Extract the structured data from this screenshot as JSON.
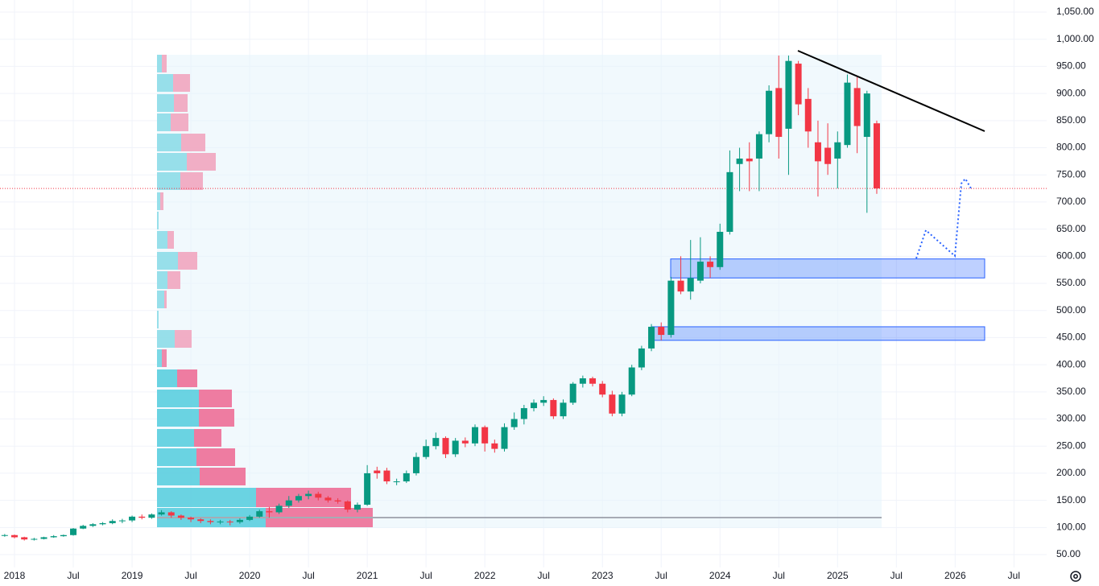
{
  "chart_data": {
    "type": "candlestick",
    "up_color": "#089981",
    "down_color": "#f23645",
    "grid": true,
    "xlim": [
      -1.48,
      105.34
    ],
    "xticks": [
      {
        "value": 0,
        "label": "2018"
      },
      {
        "value": 6,
        "label": "Jul"
      },
      {
        "value": 12,
        "label": "2019"
      },
      {
        "value": 18,
        "label": "Jul"
      },
      {
        "value": 24,
        "label": "2020"
      },
      {
        "value": 30,
        "label": "Jul"
      },
      {
        "value": 36,
        "label": "2021"
      },
      {
        "value": 42,
        "label": "Jul"
      },
      {
        "value": 48,
        "label": "2022"
      },
      {
        "value": 54,
        "label": "Jul"
      },
      {
        "value": 60,
        "label": "2023"
      },
      {
        "value": 66,
        "label": "Jul"
      },
      {
        "value": 72,
        "label": "2024"
      },
      {
        "value": 78,
        "label": "Jul"
      },
      {
        "value": 84,
        "label": "2025"
      },
      {
        "value": 90,
        "label": "Jul"
      },
      {
        "value": 96,
        "label": "2026"
      },
      {
        "value": 102,
        "label": "Jul"
      }
    ],
    "ylim": [
      26.3,
      1072.3
    ],
    "yticks": [
      {
        "value": 50,
        "label": "50.00"
      },
      {
        "value": 100,
        "label": "100.00"
      },
      {
        "value": 150,
        "label": "150.00"
      },
      {
        "value": 200,
        "label": "200.00"
      },
      {
        "value": 250,
        "label": "250.00"
      },
      {
        "value": 300,
        "label": "300.00"
      },
      {
        "value": 350,
        "label": "350.00"
      },
      {
        "value": 400,
        "label": "400.00"
      },
      {
        "value": 450,
        "label": "450.00"
      },
      {
        "value": 500,
        "label": "500.00"
      },
      {
        "value": 550,
        "label": "550.00"
      },
      {
        "value": 600,
        "label": "600.00"
      },
      {
        "value": 650,
        "label": "650.00"
      },
      {
        "value": 700,
        "label": "700.00"
      },
      {
        "value": 750,
        "label": "750.00"
      },
      {
        "value": 800,
        "label": "800.00"
      },
      {
        "value": 850,
        "label": "850.00"
      },
      {
        "value": 900,
        "label": "900.00"
      },
      {
        "value": 950,
        "label": "950.00"
      },
      {
        "value": 1000,
        "label": "1,000.00"
      },
      {
        "value": 1050,
        "label": "1,050.00"
      }
    ],
    "x": [
      -1,
      0,
      1,
      2,
      3,
      4,
      5,
      6,
      7,
      8,
      9,
      10,
      11,
      12,
      13,
      14,
      15,
      16,
      17,
      18,
      19,
      20,
      21,
      22,
      23,
      24,
      25,
      26,
      27,
      28,
      29,
      30,
      31,
      32,
      33,
      34,
      35,
      36,
      37,
      38,
      39,
      40,
      41,
      42,
      43,
      44,
      45,
      46,
      47,
      48,
      49,
      50,
      51,
      52,
      53,
      54,
      55,
      56,
      57,
      58,
      59,
      60,
      61,
      62,
      63,
      64,
      65,
      66,
      67,
      68,
      69,
      70,
      71,
      72,
      73,
      74,
      75,
      76,
      77,
      78,
      79,
      80,
      81,
      82,
      83,
      84,
      85,
      86,
      87,
      88
    ],
    "open": [
      85,
      86,
      82,
      78,
      79,
      82,
      84,
      86,
      98,
      103,
      106,
      108,
      112,
      113,
      120,
      118,
      124,
      128,
      122,
      118,
      115,
      112,
      110,
      111,
      110,
      114,
      120,
      130,
      128,
      140,
      150,
      158,
      162,
      155,
      150,
      148,
      133,
      142,
      205,
      205,
      185,
      185,
      200,
      230,
      250,
      265,
      235,
      260,
      255,
      285,
      255,
      245,
      285,
      300,
      320,
      330,
      335,
      305,
      330,
      365,
      375,
      365,
      345,
      310,
      345,
      395,
      430,
      470,
      455,
      555,
      535,
      555,
      590,
      580,
      645,
      770,
      780,
      780,
      825,
      910,
      835,
      955,
      890,
      810,
      800,
      780,
      805,
      910,
      820,
      845
    ],
    "high": [
      88,
      87,
      83,
      81,
      83,
      86,
      87,
      99,
      105,
      108,
      110,
      115,
      116,
      122,
      124,
      126,
      132,
      130,
      124,
      120,
      117,
      115,
      114,
      114,
      117,
      123,
      133,
      138,
      144,
      158,
      162,
      168,
      166,
      158,
      154,
      150,
      146,
      215,
      212,
      210,
      190,
      205,
      238,
      262,
      275,
      268,
      265,
      266,
      290,
      288,
      262,
      292,
      312,
      326,
      336,
      342,
      338,
      336,
      368,
      380,
      378,
      370,
      352,
      350,
      400,
      435,
      475,
      478,
      562,
      600,
      630,
      635,
      600,
      660,
      795,
      800,
      810,
      830,
      915,
      970,
      970,
      960,
      910,
      850,
      845,
      830,
      935,
      930,
      905,
      850
    ],
    "low": [
      83,
      80,
      76,
      76,
      78,
      81,
      83,
      85,
      97,
      101,
      104,
      106,
      108,
      110,
      115,
      116,
      122,
      118,
      114,
      110,
      108,
      106,
      106,
      104,
      107,
      112,
      118,
      118,
      125,
      136,
      146,
      152,
      150,
      146,
      144,
      128,
      128,
      140,
      190,
      180,
      178,
      182,
      196,
      226,
      244,
      228,
      230,
      248,
      250,
      240,
      238,
      240,
      280,
      290,
      314,
      324,
      300,
      300,
      326,
      358,
      360,
      340,
      305,
      305,
      342,
      390,
      425,
      445,
      450,
      530,
      520,
      550,
      560,
      575,
      640,
      720,
      720,
      720,
      810,
      780,
      750,
      860,
      800,
      710,
      750,
      725,
      800,
      790,
      680,
      715
    ],
    "close": [
      86,
      82,
      78,
      79,
      82,
      84,
      86,
      98,
      103,
      106,
      108,
      112,
      113,
      120,
      118,
      124,
      128,
      122,
      118,
      115,
      112,
      110,
      111,
      110,
      114,
      120,
      130,
      128,
      140,
      150,
      158,
      162,
      155,
      150,
      148,
      133,
      142,
      200,
      200,
      185,
      185,
      200,
      230,
      250,
      265,
      235,
      260,
      255,
      285,
      255,
      245,
      285,
      300,
      320,
      330,
      335,
      305,
      330,
      365,
      375,
      365,
      345,
      310,
      345,
      395,
      430,
      470,
      455,
      555,
      535,
      560,
      590,
      580,
      645,
      755,
      780,
      775,
      825,
      905,
      820,
      960,
      880,
      830,
      775,
      770,
      810,
      920,
      840,
      900,
      725
    ],
    "price_line": 725,
    "zones": [
      [
        560,
        595
      ],
      [
        445,
        470
      ]
    ]
  }
}
